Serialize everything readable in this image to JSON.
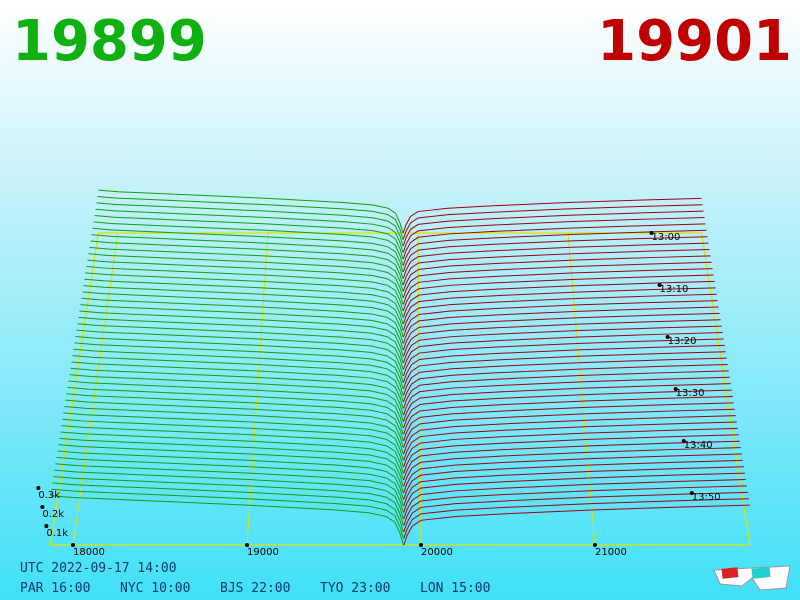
{
  "chart_data": {
    "type": "depth3d",
    "best_bid": "19899",
    "best_ask": "19901",
    "bid_color": "#10a010",
    "ask_color": "#a00010",
    "headline_bid_color": "#10b010",
    "headline_ask_color": "#c00000",
    "floor_color": "#e0e000",
    "xlim": [
      17870,
      21890
    ],
    "xticks": [
      18000,
      19000,
      20000,
      21000
    ],
    "time_ticks": [
      "13:00",
      "13:10",
      "13:20",
      "13:30",
      "13:40",
      "13:50"
    ],
    "depth_ticks": [
      {
        "value": 100,
        "label": "0.1k"
      },
      {
        "value": 200,
        "label": "0.2k"
      },
      {
        "value": 300,
        "label": "0.3k"
      }
    ],
    "bid_profile": {
      "prices": [
        19899,
        19880,
        19850,
        19800,
        19700,
        19500,
        19000,
        18500,
        18000,
        17870
      ],
      "depth": [
        0,
        60,
        120,
        150,
        170,
        185,
        210,
        230,
        250,
        260
      ]
    },
    "ask_profile": {
      "prices": [
        19901,
        19920,
        19950,
        20000,
        20200,
        20500,
        21000,
        21500,
        21890
      ],
      "depth": [
        0,
        50,
        100,
        130,
        150,
        165,
        185,
        200,
        210
      ]
    },
    "utc": "UTC 2022-09-17 14:00",
    "clocks": [
      "PAR 16:00",
      "NYC 10:00",
      "BJS 22:00",
      "TYO 23:00",
      "LON 15:00"
    ]
  }
}
